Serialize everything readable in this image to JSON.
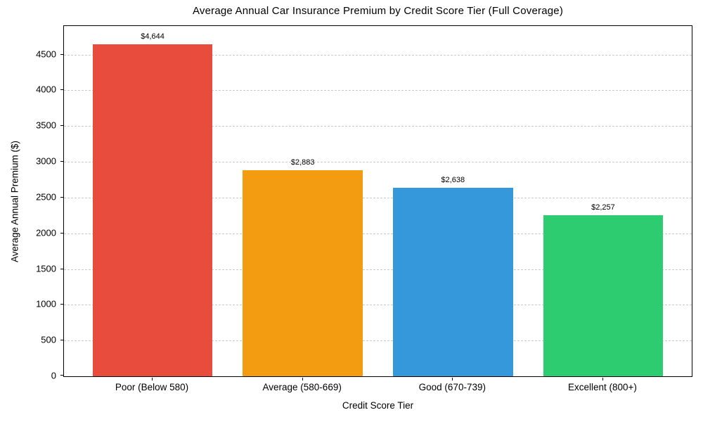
{
  "chart_data": {
    "type": "bar",
    "title": "Average Annual Car Insurance Premium by Credit Score Tier (Full Coverage)",
    "xlabel": "Credit Score Tier",
    "ylabel": "Average Annual Premium ($)",
    "categories": [
      "Poor (Below 580)",
      "Average (580-669)",
      "Good (670-739)",
      "Excellent (800+)"
    ],
    "values": [
      4644,
      2883,
      2638,
      2257
    ],
    "value_labels": [
      "$4,644",
      "$2,883",
      "$2,638",
      "$2,257"
    ],
    "bar_colors": [
      "#e74c3c",
      "#f39c12",
      "#3498db",
      "#2ecc71"
    ],
    "ylim": [
      0,
      4900
    ],
    "yticks": [
      0,
      500,
      1000,
      1500,
      2000,
      2500,
      3000,
      3500,
      4000,
      4500
    ],
    "grid": "horizontal-dashed",
    "grid_color": "#c9c9c9",
    "spine_color": "#000000",
    "background": "#ffffff",
    "legend": "none"
  }
}
